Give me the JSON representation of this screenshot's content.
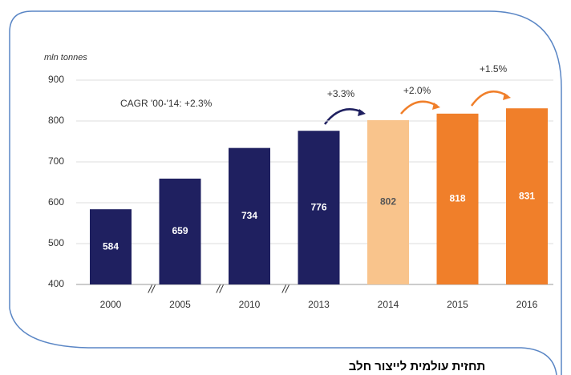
{
  "chart_data": {
    "type": "bar",
    "y_label": "mln tonnes",
    "categories": [
      "2000",
      "2005",
      "2010",
      "2013",
      "2014",
      "2015",
      "2016"
    ],
    "values": [
      584,
      659,
      734,
      776,
      802,
      818,
      831
    ],
    "colors": [
      "#1f2060",
      "#1f2060",
      "#1f2060",
      "#1f2060",
      "#f9c48c",
      "#f07f2a",
      "#f07f2a"
    ],
    "ylim": [
      400,
      900
    ],
    "yticks": [
      400,
      500,
      600,
      700,
      800,
      900
    ],
    "grid": true,
    "annotations": [
      "CAGR '00-'14: +2.3%",
      "+3.3%",
      "+2.0%",
      "+1.5%"
    ],
    "caption": "תחזית עולמית לייצור חלב"
  }
}
